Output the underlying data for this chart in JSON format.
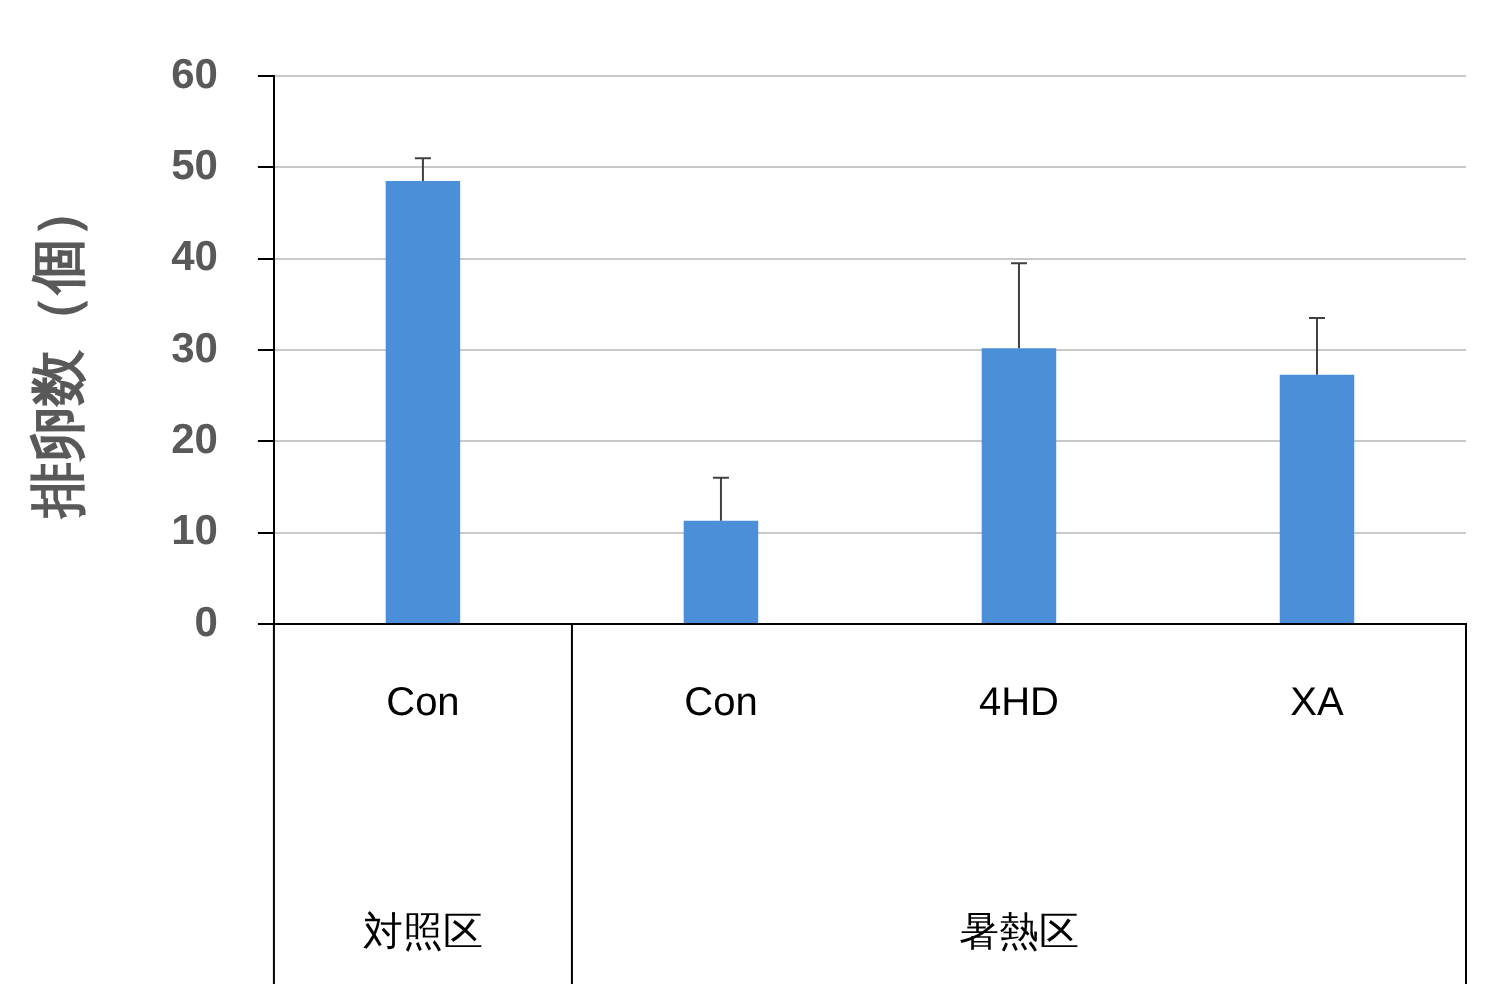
{
  "chart_data": {
    "type": "bar",
    "ylabel": "排卵数（個）",
    "categories": [
      "Con",
      "Con",
      "4HD",
      "XA"
    ],
    "values": [
      48.5,
      11.3,
      30.2,
      27.3
    ],
    "errors": [
      [
        48.5,
        51
      ],
      [
        11.3,
        16
      ],
      [
        30.2,
        39.5
      ],
      [
        27.3,
        33.5
      ]
    ],
    "color": "#4a8fd8",
    "ylim": [
      0,
      60
    ],
    "yticks": [
      0,
      10,
      20,
      30,
      40,
      50,
      60
    ],
    "grid": "y",
    "annotations": [
      "対照区",
      "暑熱区"
    ]
  }
}
